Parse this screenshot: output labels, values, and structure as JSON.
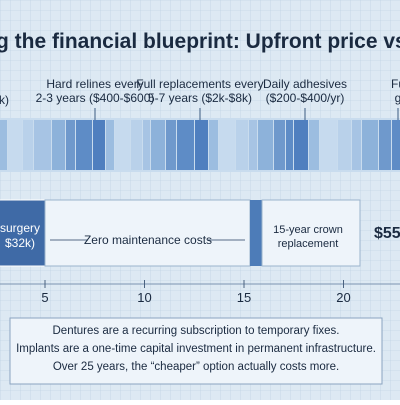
{
  "header": {
    "title": "g the financial blueprint: Upfront price vs."
  },
  "dentures": {
    "left_label": "k)",
    "notes": [
      {
        "lines": [
          "Hard relines every",
          "2-3 years ($400-$600)"
        ]
      },
      {
        "lines": [
          "Full replacements every",
          "5-7 years ($2k-$8k)"
        ]
      },
      {
        "lines": [
          "Daily adhesives",
          "($200-$400/yr)"
        ]
      },
      {
        "lines": [
          "Fu",
          "g"
        ]
      }
    ]
  },
  "implants": {
    "surgery": [
      "surgery",
      "$32k)"
    ],
    "maintenance": "Zero maintenance costs",
    "crown": [
      "15-year crown",
      "replacement"
    ],
    "total": "$55"
  },
  "axis": {
    "ticks": [
      5,
      10,
      15,
      20
    ]
  },
  "note": {
    "lines": [
      "Dentures are a recurring subscription to temporary fixes.",
      "Implants are a one-time capital investment in permanent infrastructure.",
      "Over 25 years, the “cheaper” option actually costs more."
    ]
  }
}
